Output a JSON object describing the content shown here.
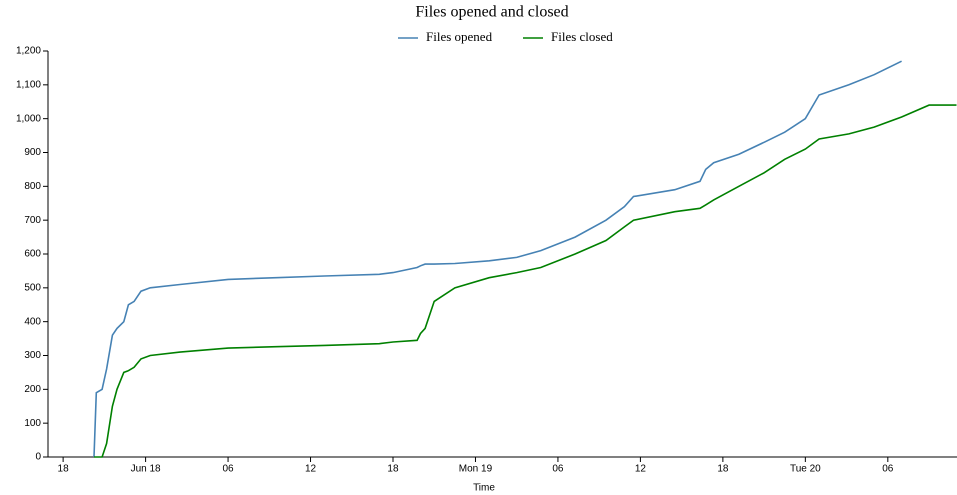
{
  "chart_data": {
    "type": "line",
    "title": "Files opened and closed",
    "x_label": "Time",
    "x": [
      "Jun 17 20:15",
      "Jun 17 20:25",
      "Jun 17 20:50",
      "Jun 17 21:10",
      "Jun 17 21:35",
      "Jun 17 21:55",
      "Jun 17 22:25",
      "Jun 17 22:45",
      "Jun 17 23:10",
      "Jun 17 23:40",
      "Jun 18 00:20",
      "Jun 18 02:30",
      "Jun 18 06:00",
      "Jun 18 09:30",
      "Jun 18 13:00",
      "Jun 18 17:00",
      "Jun 18 18:00",
      "Jun 18 19:45",
      "Jun 18 20:00",
      "Jun 18 20:20",
      "Jun 18 21:00",
      "Jun 18 22:30",
      "Jun 19 01:00",
      "Jun 19 03:00",
      "Jun 19 04:45",
      "Jun 19 07:15",
      "Jun 19 09:30",
      "Jun 19 10:50",
      "Jun 19 11:30",
      "Jun 19 14:30",
      "Jun 19 16:20",
      "Jun 19 16:45",
      "Jun 19 17:20",
      "Jun 19 19:10",
      "Jun 19 21:00",
      "Jun 19 22:30",
      "Jun 20 00:00",
      "Jun 20 01:00",
      "Jun 20 03:10",
      "Jun 20 05:00",
      "Jun 20 07:00",
      "Jun 20 09:00",
      "Jun 20 11:00"
    ],
    "series": [
      {
        "name": "Files opened",
        "color": "#4682b4",
        "values": [
          0,
          190,
          200,
          260,
          360,
          380,
          400,
          450,
          460,
          490,
          500,
          510,
          525,
          530,
          535,
          540,
          545,
          560,
          565,
          570,
          570,
          572,
          580,
          590,
          610,
          650,
          700,
          740,
          770,
          790,
          815,
          850,
          870,
          895,
          930,
          960,
          1000,
          1070,
          1100,
          1130,
          1170,
          null,
          null
        ]
      },
      {
        "name": "Files closed",
        "color": "#008000",
        "values": [
          0,
          0,
          0,
          40,
          150,
          200,
          250,
          255,
          265,
          290,
          300,
          310,
          322,
          326,
          330,
          335,
          340,
          345,
          365,
          380,
          460,
          500,
          530,
          545,
          560,
          600,
          640,
          680,
          700,
          725,
          735,
          745,
          760,
          800,
          840,
          880,
          910,
          940,
          955,
          975,
          1005,
          1040,
          1040
        ]
      }
    ],
    "xlim": [
      "Jun 17 16:54",
      "Jun 20 11:02"
    ],
    "xticks": [
      {
        "value": "Jun 17 18:00",
        "label": "18"
      },
      {
        "value": "Jun 18 00:00",
        "label": "Jun 18"
      },
      {
        "value": "Jun 18 06:00",
        "label": "06"
      },
      {
        "value": "Jun 18 12:00",
        "label": "12"
      },
      {
        "value": "Jun 18 18:00",
        "label": "18"
      },
      {
        "value": "Jun 19 00:00",
        "label": "Mon 19"
      },
      {
        "value": "Jun 19 06:00",
        "label": "06"
      },
      {
        "value": "Jun 19 12:00",
        "label": "12"
      },
      {
        "value": "Jun 19 18:00",
        "label": "18"
      },
      {
        "value": "Jun 20 00:00",
        "label": "Tue 20"
      },
      {
        "value": "Jun 20 06:00",
        "label": "06"
      }
    ],
    "ylim": [
      0,
      1200
    ],
    "yticks": [
      0,
      100,
      200,
      300,
      400,
      500,
      600,
      700,
      800,
      900,
      {
        "value": 1000,
        "label": "1,000"
      },
      {
        "value": 1100,
        "label": "1,100"
      },
      {
        "value": 1200,
        "label": "1,200"
      }
    ],
    "grid": false
  }
}
